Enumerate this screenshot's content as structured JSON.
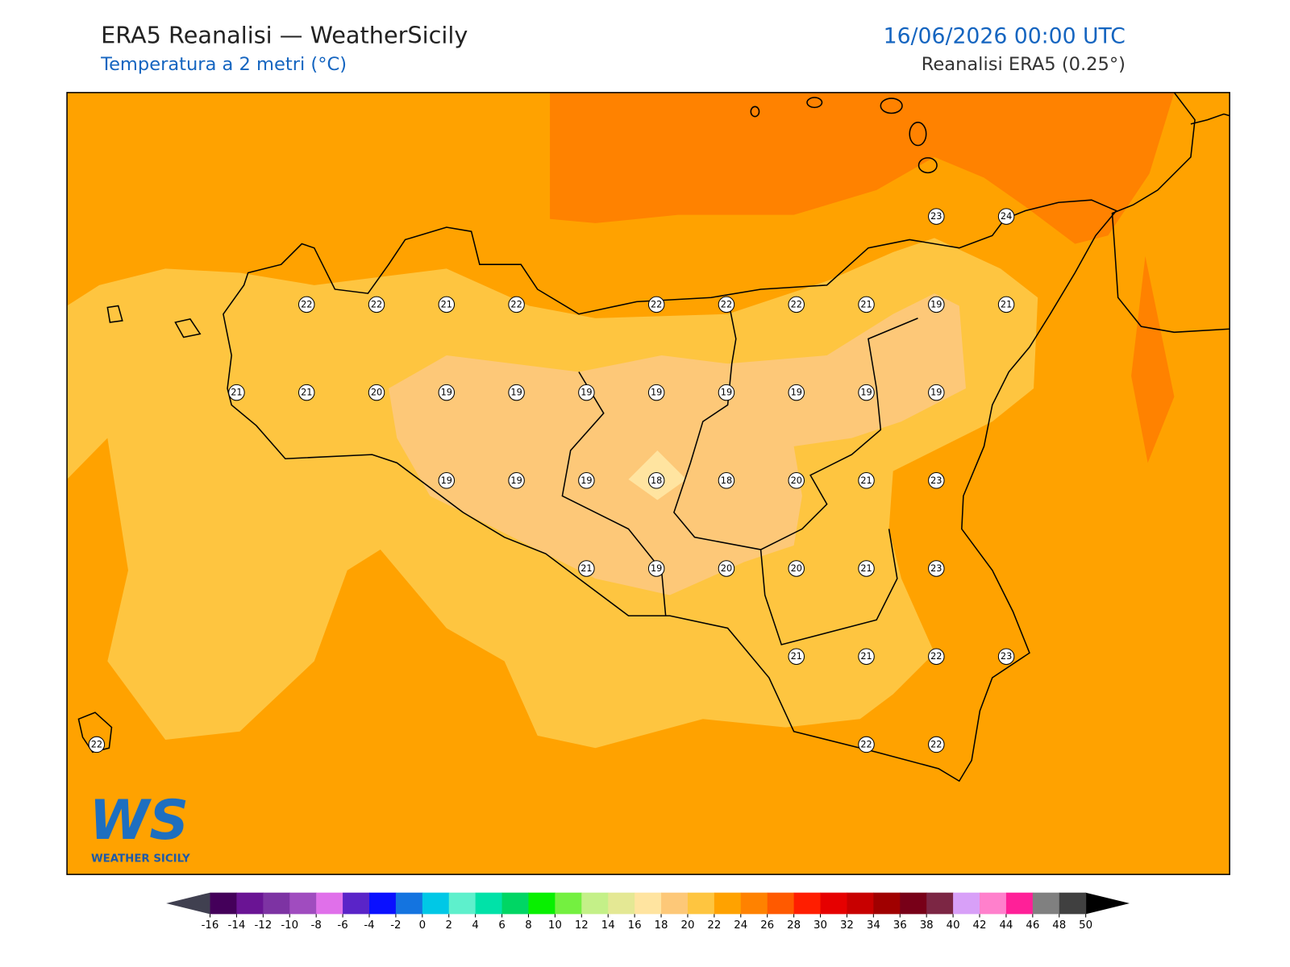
{
  "header": {
    "title": "ERA5 Reanalisi — WeatherSicily",
    "subtitle": "Temperatura a 2 metri (°C)",
    "datetime": "16/06/2026 00:00 UTC",
    "source": "Reanalisi ERA5 (0.25°)"
  },
  "map": {
    "lonlim": [
      11.894,
      16.048
    ],
    "latlim": [
      36.381,
      38.602
    ],
    "stations": [
      {
        "lon": 15.0,
        "lat": 38.25,
        "value": 23
      },
      {
        "lon": 15.25,
        "lat": 38.25,
        "value": 24
      },
      {
        "lon": 12.75,
        "lat": 38.0,
        "value": 22
      },
      {
        "lon": 13.0,
        "lat": 38.0,
        "value": 22
      },
      {
        "lon": 13.25,
        "lat": 38.0,
        "value": 21
      },
      {
        "lon": 13.5,
        "lat": 38.0,
        "value": 22
      },
      {
        "lon": 14.0,
        "lat": 38.0,
        "value": 22
      },
      {
        "lon": 14.25,
        "lat": 38.0,
        "value": 22
      },
      {
        "lon": 14.5,
        "lat": 38.0,
        "value": 22
      },
      {
        "lon": 14.75,
        "lat": 38.0,
        "value": 21
      },
      {
        "lon": 15.0,
        "lat": 38.0,
        "value": 19
      },
      {
        "lon": 15.25,
        "lat": 38.0,
        "value": 21
      },
      {
        "lon": 12.5,
        "lat": 37.75,
        "value": 21
      },
      {
        "lon": 12.75,
        "lat": 37.75,
        "value": 21
      },
      {
        "lon": 13.0,
        "lat": 37.75,
        "value": 20
      },
      {
        "lon": 13.25,
        "lat": 37.75,
        "value": 19
      },
      {
        "lon": 13.5,
        "lat": 37.75,
        "value": 19
      },
      {
        "lon": 13.75,
        "lat": 37.75,
        "value": 19
      },
      {
        "lon": 14.0,
        "lat": 37.75,
        "value": 19
      },
      {
        "lon": 14.25,
        "lat": 37.75,
        "value": 19
      },
      {
        "lon": 14.5,
        "lat": 37.75,
        "value": 19
      },
      {
        "lon": 14.75,
        "lat": 37.75,
        "value": 19
      },
      {
        "lon": 15.0,
        "lat": 37.75,
        "value": 19
      },
      {
        "lon": 13.25,
        "lat": 37.5,
        "value": 19
      },
      {
        "lon": 13.5,
        "lat": 37.5,
        "value": 19
      },
      {
        "lon": 13.75,
        "lat": 37.5,
        "value": 19
      },
      {
        "lon": 14.0,
        "lat": 37.5,
        "value": 18
      },
      {
        "lon": 14.25,
        "lat": 37.5,
        "value": 18
      },
      {
        "lon": 14.5,
        "lat": 37.5,
        "value": 20
      },
      {
        "lon": 14.75,
        "lat": 37.5,
        "value": 21
      },
      {
        "lon": 15.0,
        "lat": 37.5,
        "value": 23
      },
      {
        "lon": 13.75,
        "lat": 37.25,
        "value": 21
      },
      {
        "lon": 14.0,
        "lat": 37.25,
        "value": 19
      },
      {
        "lon": 14.25,
        "lat": 37.25,
        "value": 20
      },
      {
        "lon": 14.5,
        "lat": 37.25,
        "value": 20
      },
      {
        "lon": 14.75,
        "lat": 37.25,
        "value": 21
      },
      {
        "lon": 15.0,
        "lat": 37.25,
        "value": 23
      },
      {
        "lon": 14.5,
        "lat": 37.0,
        "value": 21
      },
      {
        "lon": 14.75,
        "lat": 37.0,
        "value": 21
      },
      {
        "lon": 15.0,
        "lat": 37.0,
        "value": 22
      },
      {
        "lon": 15.25,
        "lat": 37.0,
        "value": 23
      },
      {
        "lon": 12.0,
        "lat": 36.75,
        "value": 22
      },
      {
        "lon": 14.75,
        "lat": 36.75,
        "value": 22
      },
      {
        "lon": 15.0,
        "lat": 36.75,
        "value": 22
      }
    ]
  },
  "colorbar": {
    "ticks": [
      -16,
      -14,
      -12,
      -10,
      -8,
      -6,
      -4,
      -2,
      0,
      2,
      4,
      6,
      8,
      10,
      12,
      14,
      16,
      18,
      20,
      22,
      24,
      26,
      28,
      30,
      32,
      34,
      36,
      38,
      40,
      42,
      44,
      46,
      48,
      50
    ],
    "colors": [
      "#44005a",
      "#6a1494",
      "#7d33a3",
      "#a04cbf",
      "#e070ea",
      "#5a24c8",
      "#0a10ff",
      "#1474e0",
      "#00c8e6",
      "#5ef0cc",
      "#00e2a8",
      "#00d664",
      "#08f000",
      "#74f040",
      "#c4f088",
      "#e4e894",
      "#ffe4a0",
      "#fdc878",
      "#fec540",
      "#ffa200",
      "#ff8200",
      "#ff5a00",
      "#ff1e00",
      "#e60000",
      "#c80000",
      "#a00000",
      "#780018",
      "#7c2644",
      "#d8a0f8",
      "#ff80cc",
      "#ff2098",
      "#808080",
      "#404040"
    ],
    "under": "#404050",
    "over": "#000000"
  },
  "logo": {
    "mark": "WS",
    "name": "WEATHER SICILY"
  }
}
